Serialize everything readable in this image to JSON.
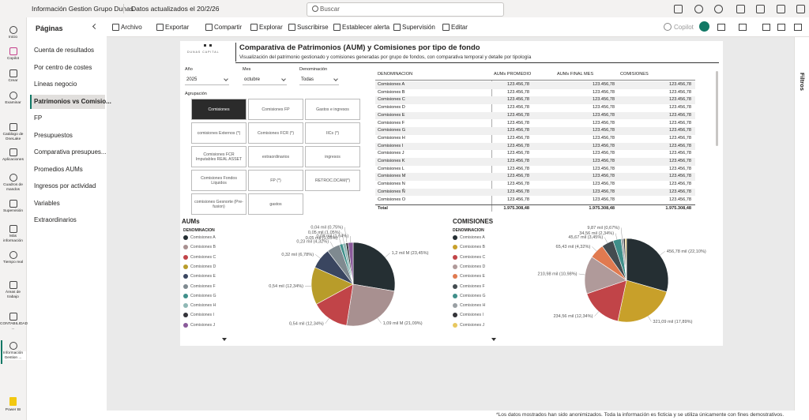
{
  "topbar": {
    "app": "Información Gestion Grupo Dunas",
    "updated": "Datos actualizados el 20/2/26",
    "search": "Buscar"
  },
  "rail": [
    "Inicio",
    "Copilot",
    "Crear",
    "Examinar",
    "Catálogo de OneLake",
    "Aplicaciones",
    "Cuadros de mandos",
    "Supervisión",
    "Más información",
    "Tiempo real",
    "Áreas de trabajo",
    "CONTABILIDAD ...",
    "Información Gestion ...",
    "Power BI"
  ],
  "pages": {
    "title": "Páginas",
    "items": [
      "Cuenta de resultados",
      "Por centro de costes",
      "Líneas negocio",
      "Patrimonios vs Comisio...",
      "FP",
      "Presupuestos",
      "Comparativa presupues...",
      "Promedios AUMs",
      "Ingresos por actividad",
      "Variables",
      "Extraordinarios"
    ]
  },
  "toolbar": {
    "items": [
      "Archivo",
      "Exportar",
      "Compartir",
      "Explorar",
      "Suscribirse",
      "Establecer alerta",
      "Supervisión",
      "Editar"
    ],
    "copilot": "Copilot"
  },
  "filters": "Filtros",
  "report": {
    "logo": "DUNAS CAPITAL",
    "title": "Comparativa de Patrimonios (AUM) y Comisiones por tipo de fondo",
    "subtitle": "Visualización del patrimonio gestionado y comisiones generadas por grupo de fondos, con comparativa temporal y detalle por tipología",
    "slicers": [
      {
        "label": "Año",
        "value": "2025"
      },
      {
        "label": "Mes",
        "value": "octubre"
      },
      {
        "label": "Denominación",
        "value": "Todas"
      }
    ],
    "group_label": "Agrupación",
    "buttons": [
      "Comisiones",
      "Comisiones FP",
      "Gastos e ingresos",
      "comisiones Externos (*)",
      "Comisiones FCR (*)",
      "IICs (*)",
      "Comisiones FCR Imputables REAL ASSET",
      "extraordinarios",
      "ingresos",
      "Comisiones Fondos Líquidos",
      "FP (*)",
      "RETROC.DCAM(*)",
      "comisiones Gesnorte (Pre-fusion)",
      "gastos"
    ],
    "table": {
      "headers": [
        "DENOMINACION",
        "AUMs PROMEDIO",
        "AUMs FINAL MES",
        "COMISIONES"
      ],
      "rows": [
        [
          "Comisiones A",
          "123.456,78",
          "123.456,78",
          "123.456,78"
        ],
        [
          "Comisiones B",
          "123.456,78",
          "123.456,78",
          "123.456,78"
        ],
        [
          "Comisiones C",
          "123.456,78",
          "123.456,78",
          "123.456,78"
        ],
        [
          "Comisiones D",
          "123.456,78",
          "123.456,78",
          "123.456,78"
        ],
        [
          "Comisiones E",
          "123.456,78",
          "123.456,78",
          "123.456,78"
        ],
        [
          "Comisiones F",
          "123.456,78",
          "123.456,78",
          "123.456,78"
        ],
        [
          "Comisiones G",
          "123.456,78",
          "123.456,78",
          "123.456,78"
        ],
        [
          "Comisiones H",
          "123.456,78",
          "123.456,78",
          "123.456,78"
        ],
        [
          "Comisiones I",
          "123.456,78",
          "123.456,78",
          "123.456,78"
        ],
        [
          "Comisiones J",
          "123.456,78",
          "123.456,78",
          "123.456,78"
        ],
        [
          "Comisiones K",
          "123.456,78",
          "123.456,78",
          "123.456,78"
        ],
        [
          "Comisiones L",
          "123.456,78",
          "123.456,78",
          "123.456,78"
        ],
        [
          "Comisiones M",
          "123.456,78",
          "123.456,78",
          "123.456,78"
        ],
        [
          "Comisiones N",
          "123.456,78",
          "123.456,78",
          "123.456,78"
        ],
        [
          "Comisiones Ñ",
          "123.456,78",
          "123.456,78",
          "123.456,78"
        ],
        [
          "Comisiones O",
          "123.456,78",
          "123.456,78",
          "123.456,78"
        ]
      ],
      "total": [
        "Total",
        "1.975.308,48",
        "1.975.308,48",
        "1.975.308,48"
      ]
    }
  },
  "chart_data": [
    {
      "type": "pie",
      "title": "AUMs",
      "legend_title": "DENOMINACION",
      "categories": [
        "Comisiones A",
        "Comisiones B",
        "Comisiones C",
        "Comisiones D",
        "Comisiones E",
        "Comisiones F",
        "Comisiones G",
        "Comisiones H",
        "Comisiones I",
        "Comisiones J"
      ],
      "values": [
        23.45,
        21.09,
        12.34,
        12.34,
        6.78,
        4.32,
        1.05,
        1.05,
        0.75,
        1.64
      ],
      "value_labels": [
        "1,2 mil M (23,45%)",
        "1,09 mil M (21,09%)",
        "0,54 mil (12,34%)",
        "0,54 mil (12,34%)",
        "0,32 mil (6,78%)",
        "0,23 mil (4,32%)",
        "0,05 mil (1,05%)",
        "0,05 mil (1,05%)",
        "0,04 mil (0,75%)",
        "0,08 mil (1,64%)"
      ],
      "colors": [
        "#252f33",
        "#a89090",
        "#c14448",
        "#b89c2a",
        "#3a4660",
        "#7f8a90",
        "#3f8f8a",
        "#8fb8b5",
        "#34343a",
        "#8a5a9a"
      ]
    },
    {
      "type": "pie",
      "title": "COMISIONES",
      "legend_title": "DENOMINACION",
      "categories": [
        "Comisiones A",
        "Comisiones B",
        "Comisiones C",
        "Comisiones D",
        "Comisiones E",
        "Comisiones F",
        "Comisiones G",
        "Comisiones H",
        "Comisiones I",
        "Comisiones J"
      ],
      "values": [
        22.1,
        17.89,
        12.34,
        10.98,
        4.32,
        3.45,
        2.34,
        0.67,
        0.5,
        0.4
      ],
      "value_labels": [
        "456,78 mil (22,10%)",
        "321,09 mil (17,89%)",
        "234,56 mil (12,34%)",
        "210,98 mil (10,98%)",
        "65,43 mil (4,32%)",
        "45,67 mil (3,45%)",
        "34,56 mil (2,34%)",
        "9,87 mil (0,67%)",
        null,
        null
      ],
      "colors": [
        "#252f33",
        "#c8a02a",
        "#c14448",
        "#b09a9a",
        "#e07a50",
        "#444c50",
        "#3f8f8a",
        "#9aa0a4",
        "#333338",
        "#e8c860"
      ]
    }
  ],
  "footer": "*Los datos mostrados han sido anonimizados. Toda la información es ficticia y se utiliza únicamente con fines demostrativos."
}
